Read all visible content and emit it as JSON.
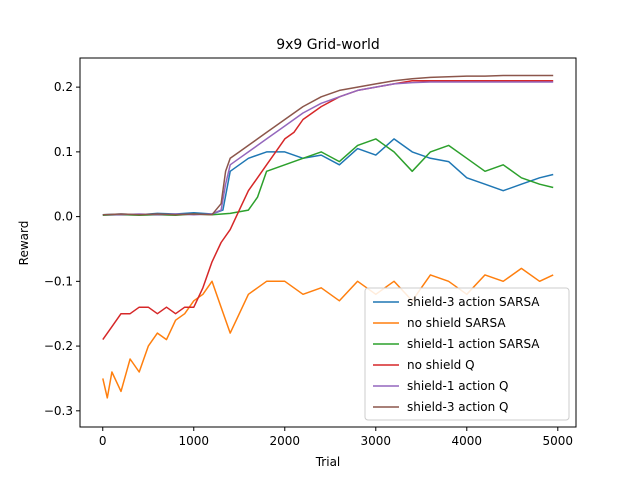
{
  "chart_data": {
    "type": "line",
    "title": "9x9 Grid-world",
    "xlabel": "Trial",
    "ylabel": "Reward",
    "xlim": [
      -250,
      5200
    ],
    "ylim": [
      -0.325,
      0.245
    ],
    "xticks": [
      0,
      1000,
      2000,
      3000,
      4000,
      5000
    ],
    "xtick_labels": [
      "0",
      "1000",
      "2000",
      "3000",
      "4000",
      "5000"
    ],
    "yticks": [
      -0.3,
      -0.2,
      -0.1,
      0.0,
      0.1,
      0.2
    ],
    "ytick_labels": [
      "−0.3",
      "−0.2",
      "−0.1",
      "0.0",
      "0.1",
      "0.2"
    ],
    "grid": false,
    "legend_position": "lower-right",
    "series": [
      {
        "name": "shield-3 action SARSA",
        "color": "#1f77b4",
        "x": [
          0,
          200,
          400,
          600,
          800,
          1000,
          1200,
          1320,
          1400,
          1600,
          1800,
          2000,
          2200,
          2400,
          2600,
          2800,
          3000,
          3200,
          3400,
          3600,
          3800,
          4000,
          4200,
          4400,
          4600,
          4800,
          4950
        ],
        "y": [
          0.003,
          0.004,
          0.003,
          0.005,
          0.004,
          0.006,
          0.004,
          0.01,
          0.07,
          0.09,
          0.1,
          0.1,
          0.09,
          0.095,
          0.08,
          0.105,
          0.095,
          0.12,
          0.1,
          0.09,
          0.085,
          0.06,
          0.05,
          0.04,
          0.05,
          0.06,
          0.065
        ]
      },
      {
        "name": "no shield SARSA",
        "color": "#ff7f0e",
        "x": [
          0,
          50,
          100,
          200,
          300,
          400,
          500,
          600,
          700,
          800,
          900,
          1000,
          1100,
          1200,
          1300,
          1400,
          1500,
          1600,
          1700,
          1800,
          2000,
          2200,
          2400,
          2600,
          2800,
          3000,
          3200,
          3400,
          3600,
          3800,
          4000,
          4200,
          4400,
          4600,
          4800,
          4950
        ],
        "y": [
          -0.25,
          -0.28,
          -0.24,
          -0.27,
          -0.22,
          -0.24,
          -0.2,
          -0.18,
          -0.19,
          -0.16,
          -0.15,
          -0.13,
          -0.12,
          -0.1,
          -0.14,
          -0.18,
          -0.15,
          -0.12,
          -0.11,
          -0.1,
          -0.1,
          -0.12,
          -0.11,
          -0.13,
          -0.1,
          -0.12,
          -0.1,
          -0.13,
          -0.09,
          -0.1,
          -0.12,
          -0.09,
          -0.1,
          -0.08,
          -0.1,
          -0.09
        ]
      },
      {
        "name": "shield-1 action SARSA",
        "color": "#2ca02c",
        "x": [
          0,
          200,
          400,
          600,
          800,
          1000,
          1200,
          1400,
          1600,
          1700,
          1800,
          2000,
          2200,
          2400,
          2600,
          2800,
          3000,
          3200,
          3400,
          3600,
          3800,
          4000,
          4200,
          4400,
          4600,
          4800,
          4950
        ],
        "y": [
          0.002,
          0.003,
          0.002,
          0.003,
          0.002,
          0.004,
          0.003,
          0.005,
          0.01,
          0.03,
          0.07,
          0.08,
          0.09,
          0.1,
          0.085,
          0.11,
          0.12,
          0.1,
          0.07,
          0.1,
          0.11,
          0.09,
          0.07,
          0.08,
          0.06,
          0.05,
          0.045
        ]
      },
      {
        "name": "no shield Q",
        "color": "#d62728",
        "x": [
          0,
          100,
          200,
          300,
          400,
          500,
          600,
          700,
          800,
          900,
          1000,
          1100,
          1200,
          1300,
          1400,
          1500,
          1600,
          1700,
          1800,
          1900,
          2000,
          2100,
          2200,
          2400,
          2600,
          2800,
          3000,
          3200,
          3400,
          3600,
          3800,
          4000,
          4200,
          4400,
          4600,
          4800,
          4950
        ],
        "y": [
          -0.19,
          -0.17,
          -0.15,
          -0.15,
          -0.14,
          -0.14,
          -0.15,
          -0.14,
          -0.15,
          -0.14,
          -0.14,
          -0.11,
          -0.07,
          -0.04,
          -0.02,
          0.01,
          0.04,
          0.06,
          0.08,
          0.1,
          0.12,
          0.13,
          0.15,
          0.17,
          0.185,
          0.195,
          0.2,
          0.205,
          0.21,
          0.21,
          0.21,
          0.21,
          0.21,
          0.21,
          0.21,
          0.21,
          0.21
        ]
      },
      {
        "name": "shield-1 action Q",
        "color": "#9467bd",
        "x": [
          0,
          200,
          400,
          600,
          800,
          1000,
          1200,
          1300,
          1350,
          1400,
          1500,
          1600,
          1700,
          1800,
          2000,
          2200,
          2400,
          2600,
          2800,
          3000,
          3200,
          3400,
          3600,
          3800,
          4000,
          4200,
          4400,
          4600,
          4800,
          4950
        ],
        "y": [
          0.003,
          0.003,
          0.004,
          0.003,
          0.004,
          0.003,
          0.004,
          0.01,
          0.05,
          0.08,
          0.09,
          0.1,
          0.11,
          0.12,
          0.14,
          0.16,
          0.175,
          0.185,
          0.195,
          0.2,
          0.205,
          0.207,
          0.208,
          0.208,
          0.208,
          0.208,
          0.208,
          0.208,
          0.208,
          0.208
        ]
      },
      {
        "name": "shield-3 action Q",
        "color": "#8c564b",
        "x": [
          0,
          200,
          400,
          600,
          800,
          1000,
          1200,
          1300,
          1350,
          1400,
          1500,
          1600,
          1700,
          1800,
          2000,
          2200,
          2400,
          2600,
          2800,
          3000,
          3200,
          3400,
          3600,
          3800,
          4000,
          4200,
          4400,
          4600,
          4800,
          4950
        ],
        "y": [
          0.003,
          0.004,
          0.003,
          0.004,
          0.003,
          0.004,
          0.003,
          0.02,
          0.07,
          0.09,
          0.1,
          0.11,
          0.12,
          0.13,
          0.15,
          0.17,
          0.185,
          0.195,
          0.2,
          0.205,
          0.21,
          0.213,
          0.215,
          0.216,
          0.217,
          0.217,
          0.218,
          0.218,
          0.218,
          0.218
        ]
      }
    ]
  }
}
